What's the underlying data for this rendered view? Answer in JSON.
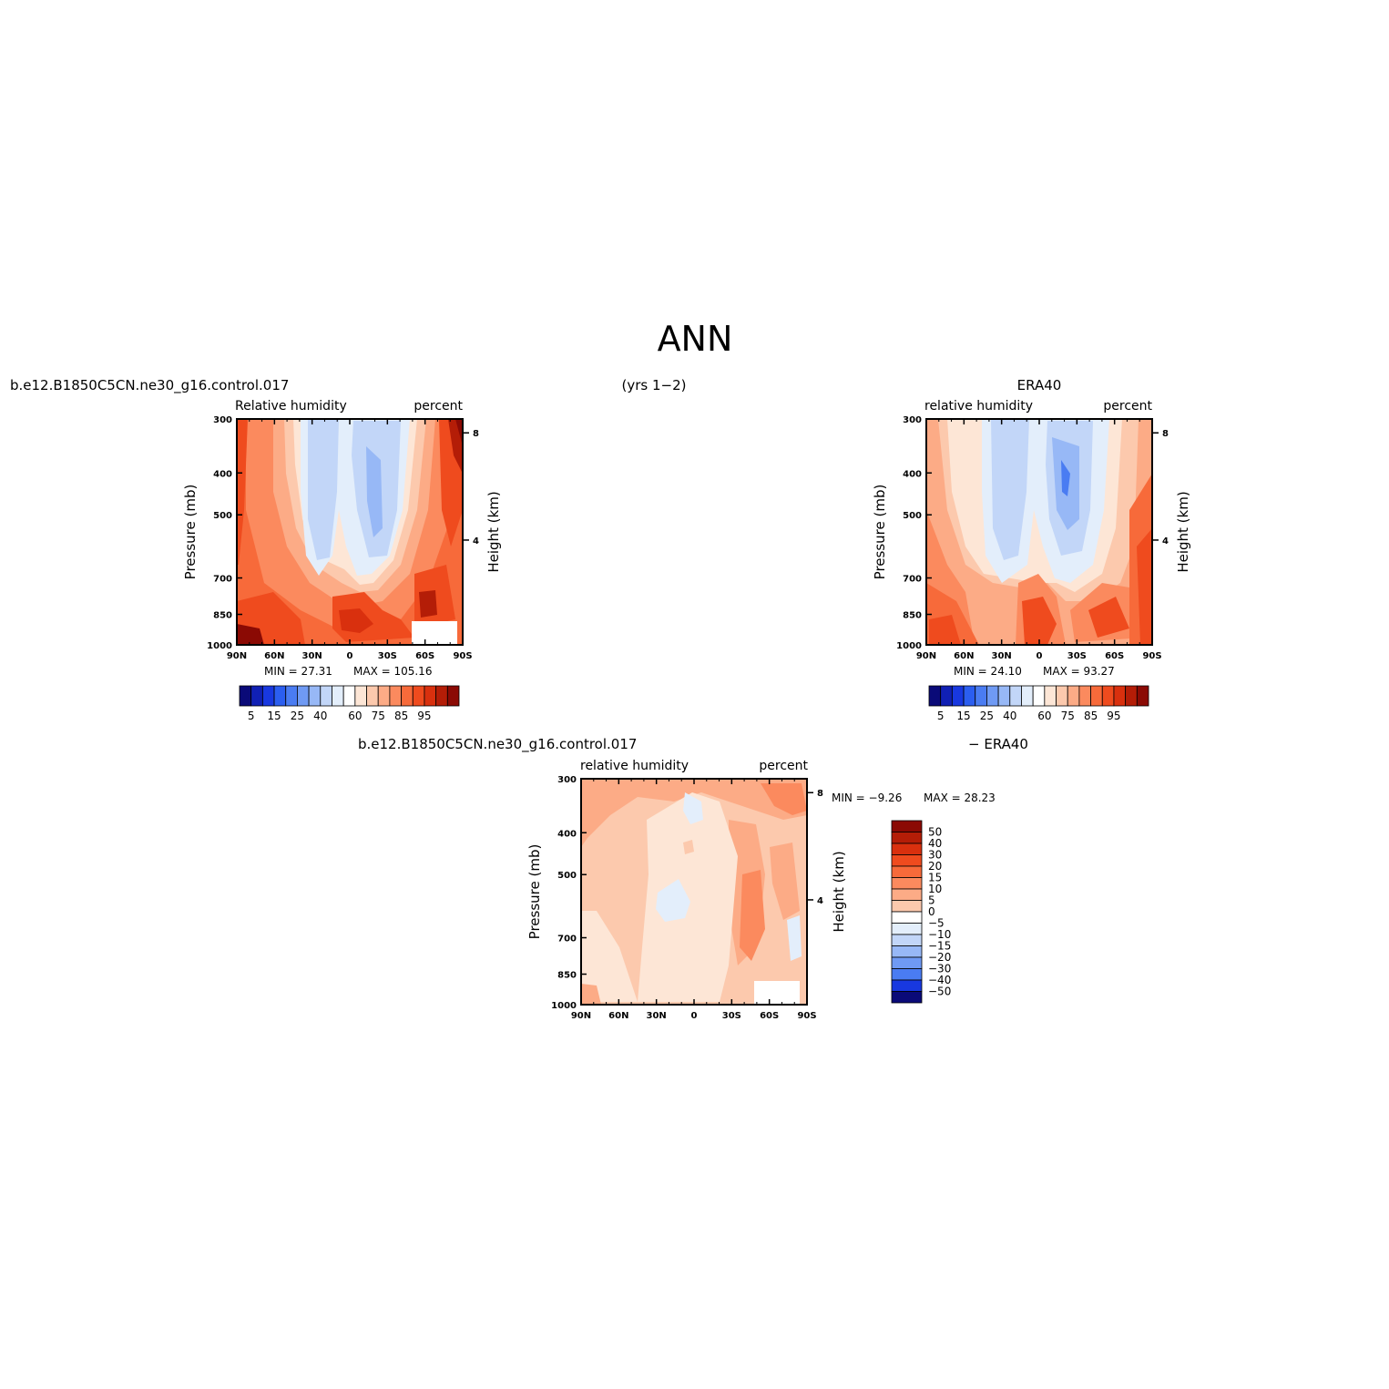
{
  "figure": {
    "title": "ANN",
    "years": "(yrs 1−2)"
  },
  "panels": [
    {
      "id": "model",
      "header_left": "b.e12.B1850C5CN.ne30_g16.control.017",
      "header_right": "",
      "subtitle_left": "Relative humidity",
      "subtitle_right": "percent",
      "ylabel": "Pressure (mb)",
      "ylabel_right": "Height (km)",
      "min_text": "MIN =   27.31",
      "max_text": "MAX = 105.16",
      "colorbar_labels": [
        "5",
        "15",
        "25",
        "40",
        "60",
        "75",
        "85",
        "95"
      ]
    },
    {
      "id": "obs",
      "header_left": "",
      "header_right": "ERA40",
      "subtitle_left": "relative humidity",
      "subtitle_right": "percent",
      "ylabel": "Pressure (mb)",
      "ylabel_right": "Height (km)",
      "min_text": "MIN =   24.10",
      "max_text": "MAX =   93.27",
      "colorbar_labels": [
        "5",
        "15",
        "25",
        "40",
        "60",
        "75",
        "85",
        "95"
      ]
    },
    {
      "id": "diff",
      "header_left": "b.e12.B1850C5CN.ne30_g16.control.017",
      "header_right": "− ERA40",
      "subtitle_left": "relative humidity",
      "subtitle_right": "percent",
      "ylabel": "Pressure (mb)",
      "ylabel_right": "Height (km)",
      "min_text": "MIN =   −9.26",
      "max_text": "MAX =   28.23",
      "colorbar_labels": [
        "50",
        "40",
        "30",
        "20",
        "15",
        "10",
        "5",
        "0",
        "−5",
        "−10",
        "−15",
        "−20",
        "−30",
        "−40",
        "−50"
      ]
    }
  ],
  "chart_data": [
    {
      "type": "heatmap",
      "title": "Relative humidity",
      "units": "percent",
      "x_ticks": [
        "90N",
        "60N",
        "30N",
        "0",
        "30S",
        "60S",
        "90S"
      ],
      "y_ticks": [
        300,
        400,
        500,
        700,
        850,
        1000
      ],
      "y_scale": "log",
      "y_reversed": true,
      "ylim": [
        300,
        1000
      ],
      "right_ticks_km": [
        4,
        8
      ],
      "levels": [
        5,
        10,
        15,
        20,
        25,
        30,
        40,
        50,
        60,
        65,
        70,
        75,
        80,
        85,
        90,
        95
      ],
      "min": 27.31,
      "max": 105.16
    },
    {
      "type": "heatmap",
      "title": "relative humidity",
      "units": "percent",
      "x_ticks": [
        "90N",
        "60N",
        "30N",
        "0",
        "30S",
        "60S",
        "90S"
      ],
      "y_ticks": [
        300,
        400,
        500,
        700,
        850,
        1000
      ],
      "y_scale": "log",
      "y_reversed": true,
      "ylim": [
        300,
        1000
      ],
      "right_ticks_km": [
        4,
        8
      ],
      "levels": [
        5,
        10,
        15,
        20,
        25,
        30,
        40,
        50,
        60,
        65,
        70,
        75,
        80,
        85,
        90,
        95
      ],
      "min": 24.1,
      "max": 93.27
    },
    {
      "type": "heatmap",
      "title": "relative humidity",
      "units": "percent",
      "x_ticks": [
        "90N",
        "60N",
        "30N",
        "0",
        "30S",
        "60S",
        "90S"
      ],
      "y_ticks": [
        300,
        400,
        500,
        700,
        850,
        1000
      ],
      "y_scale": "log",
      "y_reversed": true,
      "ylim": [
        300,
        1000
      ],
      "right_ticks_km": [
        4,
        8
      ],
      "levels": [
        -50,
        -40,
        -30,
        -20,
        -15,
        -10,
        -5,
        0,
        5,
        10,
        15,
        20,
        30,
        40,
        50
      ],
      "min": -9.26,
      "max": 28.23
    }
  ],
  "colors": {
    "abs_palette": [
      "#0a0a78",
      "#1020b4",
      "#1838e0",
      "#2b5ef0",
      "#4a7cf2",
      "#6f9af4",
      "#97b8f6",
      "#c2d6f8",
      "#e3eefb",
      "#ffffff",
      "#fde6d6",
      "#fcc9ad",
      "#fcab86",
      "#fb8a5e",
      "#f76a3a",
      "#ef4b1e",
      "#d9300e",
      "#b41d07",
      "#8b0a04"
    ],
    "diff_palette": [
      "#8b0a04",
      "#b41d07",
      "#d9300e",
      "#ef4b1e",
      "#f76a3a",
      "#fb8a5e",
      "#fcab86",
      "#fcc9ad",
      "#fde6d6",
      "#ffffff",
      "#e3eefb",
      "#c2d6f8",
      "#97b8f6",
      "#6f9af4",
      "#4a7cf2",
      "#2b5ef0",
      "#1838e0",
      "#1020b4",
      "#0a0a78"
    ]
  }
}
